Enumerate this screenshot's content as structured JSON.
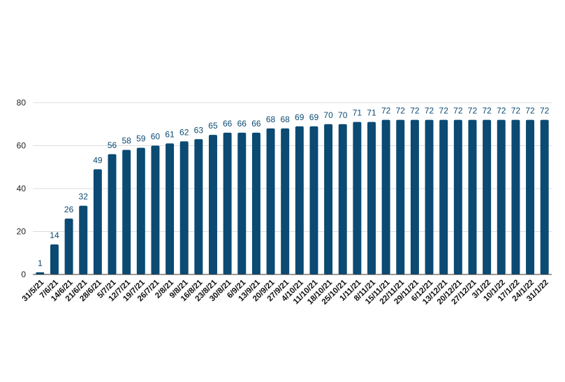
{
  "chart_data": {
    "type": "bar",
    "title": "",
    "xlabel": "",
    "ylabel": "",
    "ylim": [
      0,
      80
    ],
    "yticks": [
      0,
      20,
      40,
      60,
      80
    ],
    "grid": true,
    "legend": "none",
    "bar_color": "#0b4a73",
    "label_color": "#0b4a73",
    "grid_color": "#dddddd",
    "categories": [
      "31/5/21",
      "7/6/21",
      "14/6/21",
      "21/6/21",
      "28/6/21",
      "5/7/21",
      "12/7/21",
      "19/7/21",
      "26/7/21",
      "2/8/21",
      "9/8/21",
      "16/8/21",
      "23/8/21",
      "30/8/21",
      "6/9/21",
      "13/9/21",
      "20/9/21",
      "27/9/21",
      "4/10/21",
      "11/10/21",
      "18/10/21",
      "25/10/21",
      "1/11/21",
      "8/11/21",
      "15/11/21",
      "22/11/21",
      "29/11/21",
      "6/12/21",
      "13/12/21",
      "20/12/21",
      "27/12/21",
      "3/1/22",
      "10/1/22",
      "17/1/22",
      "24/1/22",
      "31/1/22"
    ],
    "values": [
      1,
      14,
      26,
      32,
      49,
      56,
      58,
      59,
      60,
      61,
      62,
      63,
      65,
      66,
      66,
      66,
      68,
      68,
      69,
      69,
      70,
      70,
      71,
      71,
      72,
      72,
      72,
      72,
      72,
      72,
      72,
      72,
      72,
      72,
      72,
      72
    ]
  }
}
